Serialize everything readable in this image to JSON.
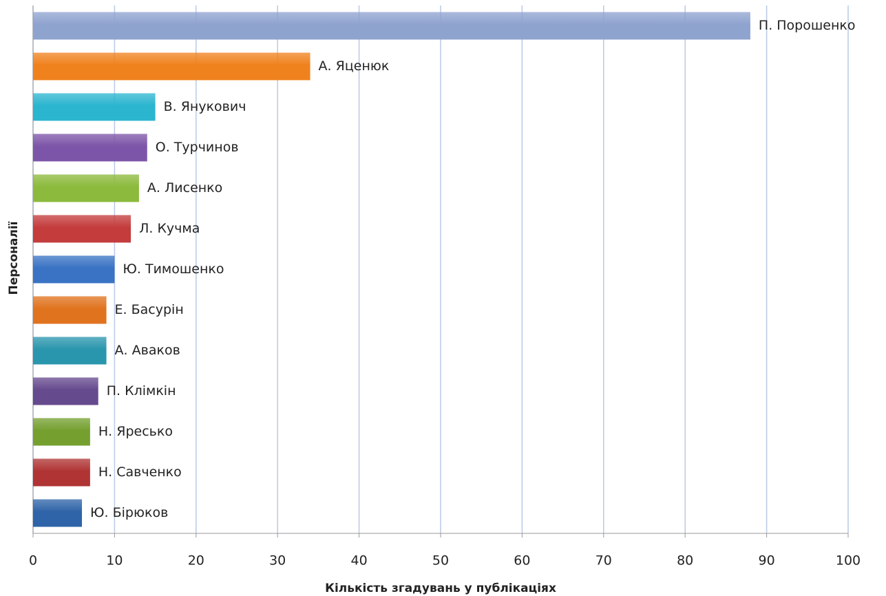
{
  "chart_data": {
    "type": "barh",
    "xlabel": "Кількість згадувань у публікаціях",
    "ylabel": "Персоналії",
    "categories": [
      "П. Порошенко",
      "А. Яценюк",
      "В. Янукович",
      "О. Турчинов",
      "А. Лисенко",
      "Л. Кучма",
      "Ю. Тимошенко",
      "Е. Басурін",
      "А. Аваков",
      "П. Клімкін",
      "Н. Яресько",
      "Н. Савченко",
      "Ю. Бірюков"
    ],
    "values": [
      88,
      34,
      15,
      14,
      13,
      12,
      10,
      9,
      9,
      8,
      7,
      7,
      6
    ],
    "colors": [
      "#8fa3cf",
      "#f0821e",
      "#2bb5cf",
      "#7d55a8",
      "#8cba3c",
      "#c43c3c",
      "#3a73c4",
      "#e0731e",
      "#2a96ad",
      "#664a8e",
      "#75a030",
      "#b03434",
      "#2f64a8"
    ],
    "xlim": [
      0,
      100
    ],
    "xticks": [
      0,
      10,
      20,
      30,
      40,
      50,
      60,
      70,
      80,
      90,
      100
    ],
    "grid": true
  }
}
